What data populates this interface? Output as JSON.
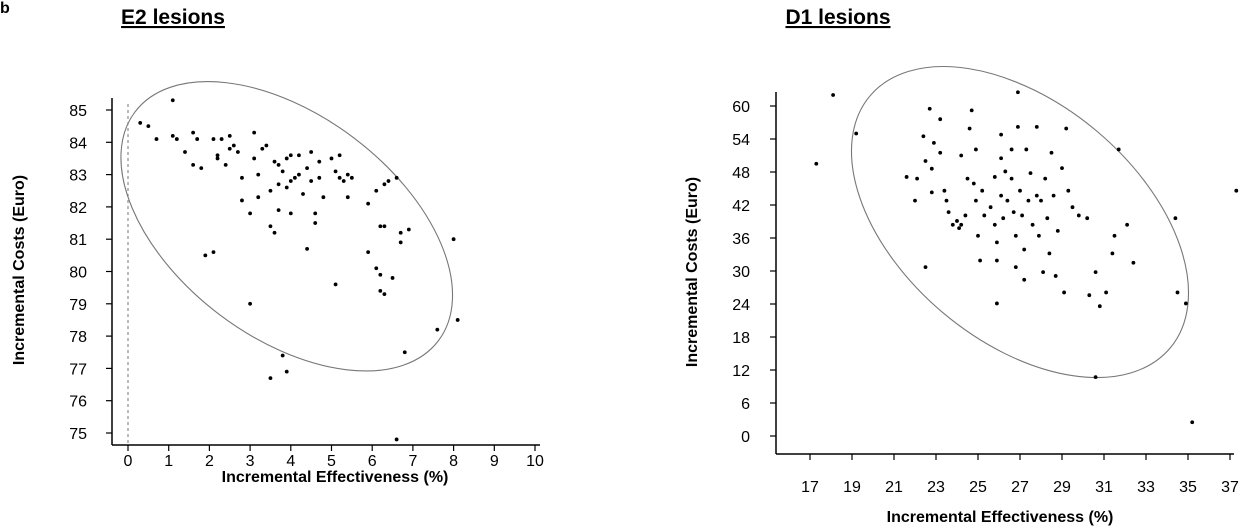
{
  "panel_marker": "b",
  "chart_data": [
    {
      "type": "scatter",
      "title": "E2 lesions",
      "xlabel": "Incremental Effectiveness (%)",
      "ylabel": "Incremental Costs (Euro)",
      "xlim": [
        -1,
        10.3
      ],
      "ylim": [
        74.6,
        85.5
      ],
      "xticks": [
        "0",
        "1",
        "2",
        "3",
        "4",
        "5",
        "6",
        "7",
        "8",
        "9",
        "10"
      ],
      "yticks": [
        "75",
        "76",
        "77",
        "78",
        "79",
        "80",
        "81",
        "82",
        "83",
        "84",
        "85"
      ],
      "grid": false,
      "reference_line": {
        "x": 0,
        "style": "dashed"
      },
      "confidence_ellipse": {
        "center": [
          3.9,
          81.4
        ],
        "semi_x": 4.6,
        "semi_y": 5.2,
        "rotation_deg": 37
      },
      "points": [
        [
          0.3,
          84.6
        ],
        [
          0.5,
          84.5
        ],
        [
          0.7,
          84.1
        ],
        [
          1.1,
          85.3
        ],
        [
          1.1,
          84.2
        ],
        [
          1.2,
          84.1
        ],
        [
          1.4,
          83.7
        ],
        [
          1.6,
          83.3
        ],
        [
          1.6,
          84.3
        ],
        [
          1.7,
          84.1
        ],
        [
          1.8,
          83.2
        ],
        [
          2.1,
          84.1
        ],
        [
          2.2,
          83.6
        ],
        [
          2.2,
          83.5
        ],
        [
          2.3,
          84.1
        ],
        [
          2.4,
          83.3
        ],
        [
          2.5,
          84.2
        ],
        [
          2.5,
          83.8
        ],
        [
          2.6,
          83.9
        ],
        [
          2.7,
          83.7
        ],
        [
          2.8,
          82.9
        ],
        [
          2.8,
          82.2
        ],
        [
          3.0,
          81.8
        ],
        [
          3.1,
          84.3
        ],
        [
          3.1,
          83.5
        ],
        [
          3.2,
          83.0
        ],
        [
          3.2,
          82.3
        ],
        [
          3.3,
          83.8
        ],
        [
          3.4,
          83.9
        ],
        [
          3.5,
          82.5
        ],
        [
          3.6,
          83.4
        ],
        [
          3.7,
          83.3
        ],
        [
          3.7,
          82.7
        ],
        [
          3.7,
          81.9
        ],
        [
          3.8,
          83.1
        ],
        [
          3.9,
          83.5
        ],
        [
          3.9,
          82.6
        ],
        [
          4.0,
          83.6
        ],
        [
          4.0,
          82.8
        ],
        [
          4.0,
          81.8
        ],
        [
          4.1,
          82.9
        ],
        [
          4.2,
          83.6
        ],
        [
          4.2,
          83.0
        ],
        [
          4.3,
          82.4
        ],
        [
          4.4,
          83.2
        ],
        [
          4.5,
          83.7
        ],
        [
          4.5,
          82.8
        ],
        [
          4.6,
          81.8
        ],
        [
          4.6,
          81.5
        ],
        [
          4.7,
          83.4
        ],
        [
          4.7,
          82.9
        ],
        [
          4.8,
          82.3
        ],
        [
          5.0,
          83.5
        ],
        [
          5.1,
          83.1
        ],
        [
          5.2,
          83.6
        ],
        [
          5.2,
          82.9
        ],
        [
          5.3,
          82.8
        ],
        [
          5.4,
          83.0
        ],
        [
          5.4,
          82.3
        ],
        [
          5.5,
          82.9
        ],
        [
          3.5,
          81.4
        ],
        [
          3.6,
          81.2
        ],
        [
          4.4,
          80.7
        ],
        [
          5.9,
          82.1
        ],
        [
          6.1,
          82.5
        ],
        [
          6.3,
          82.7
        ],
        [
          6.4,
          82.8
        ],
        [
          6.6,
          82.9
        ],
        [
          6.2,
          81.4
        ],
        [
          6.3,
          81.4
        ],
        [
          6.7,
          81.2
        ],
        [
          6.7,
          80.9
        ],
        [
          6.9,
          81.3
        ],
        [
          8.0,
          81.0
        ],
        [
          5.9,
          80.6
        ],
        [
          6.1,
          80.1
        ],
        [
          6.2,
          79.9
        ],
        [
          6.2,
          79.4
        ],
        [
          6.3,
          79.3
        ],
        [
          6.5,
          79.8
        ],
        [
          1.9,
          80.5
        ],
        [
          2.1,
          80.6
        ],
        [
          3.0,
          79.0
        ],
        [
          5.1,
          79.6
        ],
        [
          7.6,
          78.2
        ],
        [
          8.1,
          78.5
        ],
        [
          6.8,
          77.5
        ],
        [
          3.8,
          77.4
        ],
        [
          3.9,
          76.9
        ],
        [
          3.5,
          76.7
        ],
        [
          6.6,
          74.8
        ]
      ]
    },
    {
      "type": "scatter",
      "title": "D1 lesions",
      "xlabel": "Incremental Effectiveness (%)",
      "ylabel": "Incremental Costs (Euro)",
      "xlim": [
        15.8,
        37.5
      ],
      "ylim": [
        -2.5,
        64
      ],
      "xticks": [
        "17",
        "19",
        "21",
        "23",
        "25",
        "27",
        "29",
        "31",
        "33",
        "35",
        "37"
      ],
      "yticks": [
        "0",
        "6",
        "12",
        "18",
        "24",
        "30",
        "36",
        "42",
        "48",
        "54",
        "60"
      ],
      "grid": false,
      "confidence_ellipse": {
        "center": [
          27,
          38.9
        ],
        "semi_x": 10,
        "semi_y": 25,
        "rotation_deg": 40
      },
      "points": [
        [
          17.3,
          49.5
        ],
        [
          18.1,
          62
        ],
        [
          19.2,
          55
        ],
        [
          21.6,
          47.1
        ],
        [
          22.0,
          42.8
        ],
        [
          22.1,
          46.8
        ],
        [
          22.4,
          54.5
        ],
        [
          22.5,
          50
        ],
        [
          22.7,
          59.5
        ],
        [
          22.8,
          48.6
        ],
        [
          22.8,
          44.3
        ],
        [
          22.9,
          53.3
        ],
        [
          23.2,
          51.5
        ],
        [
          23.2,
          57.6
        ],
        [
          23.4,
          44.6
        ],
        [
          23.5,
          42.8
        ],
        [
          23.6,
          40.7
        ],
        [
          23.8,
          38.4
        ],
        [
          24.0,
          39.1
        ],
        [
          24.1,
          37.8
        ],
        [
          24.2,
          51
        ],
        [
          24.2,
          38.4
        ],
        [
          24.4,
          40.1
        ],
        [
          24.5,
          46.8
        ],
        [
          24.6,
          55.9
        ],
        [
          24.7,
          59.2
        ],
        [
          24.8,
          45.9
        ],
        [
          24.9,
          52.1
        ],
        [
          24.9,
          42.8
        ],
        [
          25.0,
          36.4
        ],
        [
          25.2,
          44.6
        ],
        [
          25.3,
          40.1
        ],
        [
          25.6,
          41.6
        ],
        [
          25.8,
          47.1
        ],
        [
          25.8,
          38.4
        ],
        [
          25.9,
          35.2
        ],
        [
          25.9,
          31.9
        ],
        [
          25.9,
          24.1
        ],
        [
          26.1,
          50.5
        ],
        [
          26.1,
          54.8
        ],
        [
          26.1,
          43.7
        ],
        [
          26.2,
          39.6
        ],
        [
          26.3,
          48.1
        ],
        [
          26.4,
          42.8
        ],
        [
          26.6,
          52.1
        ],
        [
          26.6,
          46.8
        ],
        [
          26.7,
          40.7
        ],
        [
          26.8,
          36.4
        ],
        [
          26.8,
          30.7
        ],
        [
          26.9,
          56.2
        ],
        [
          26.9,
          62.5
        ],
        [
          27.0,
          44.6
        ],
        [
          27.1,
          40.1
        ],
        [
          27.2,
          33.9
        ],
        [
          27.2,
          28.4
        ],
        [
          27.3,
          52.1
        ],
        [
          27.4,
          42.8
        ],
        [
          27.5,
          47.8
        ],
        [
          27.6,
          38.4
        ],
        [
          27.8,
          56.2
        ],
        [
          27.8,
          43.7
        ],
        [
          27.9,
          36.4
        ],
        [
          28.0,
          42.8
        ],
        [
          28.1,
          29.8
        ],
        [
          28.2,
          46.8
        ],
        [
          28.3,
          39.6
        ],
        [
          28.4,
          33.2
        ],
        [
          28.5,
          51.5
        ],
        [
          28.6,
          43.7
        ],
        [
          28.7,
          29.1
        ],
        [
          28.8,
          37.3
        ],
        [
          29.0,
          48.7
        ],
        [
          29.1,
          26.1
        ],
        [
          29.2,
          55.9
        ],
        [
          29.3,
          44.6
        ],
        [
          29.5,
          41.6
        ],
        [
          29.8,
          40.1
        ],
        [
          30.2,
          39.6
        ],
        [
          30.3,
          25.6
        ],
        [
          30.6,
          29.8
        ],
        [
          30.8,
          23.6
        ],
        [
          31.1,
          26.1
        ],
        [
          31.4,
          33.2
        ],
        [
          31.5,
          36.4
        ],
        [
          31.7,
          52.1
        ],
        [
          32.1,
          38.4
        ],
        [
          32.4,
          31.5
        ],
        [
          34.4,
          39.6
        ],
        [
          34.5,
          26.1
        ],
        [
          34.9,
          24.1
        ],
        [
          35.2,
          2.5
        ],
        [
          30.6,
          10.7
        ],
        [
          22.5,
          30.7
        ],
        [
          25.1,
          31.9
        ],
        [
          37.3,
          44.6
        ]
      ]
    }
  ]
}
